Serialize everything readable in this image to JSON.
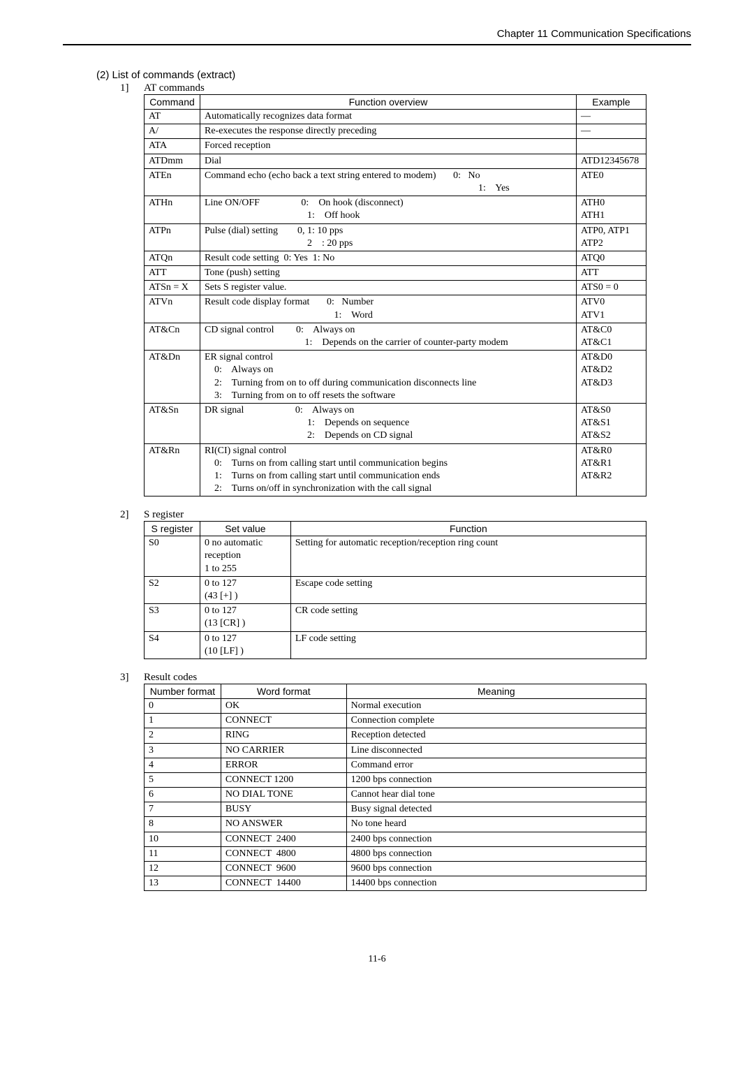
{
  "header": {
    "chapter": "Chapter 11  Communication Specifications"
  },
  "section": {
    "title": "(2)    List of commands (extract)"
  },
  "sub1": {
    "num": "1]",
    "title": "AT commands"
  },
  "t1_head": {
    "c1": "Command",
    "c2": "Function overview",
    "c3": "Example"
  },
  "t1": [
    {
      "cmd": "AT",
      "fn": "Automatically recognizes data format",
      "ex": "—"
    },
    {
      "cmd": "A/",
      "fn": "Re-executes the response directly preceding",
      "ex": "—"
    },
    {
      "cmd": "ATA",
      "fn": "Forced reception",
      "ex": ""
    },
    {
      "cmd": "ATDmm",
      "fn": "Dial",
      "ex": "ATD12345678"
    },
    {
      "cmd": "ATEn",
      "fn": "Command echo (echo back a text string entered to modem)       0:   No\n                                                                                                                1:    Yes",
      "ex": "ATE0"
    },
    {
      "cmd": "ATHn",
      "fn": "Line ON/OFF                 0:    On hook (disconnect)\n                                          1:    Off hook",
      "ex": "ATH0\nATH1"
    },
    {
      "cmd": "ATPn",
      "fn": "Pulse (dial) setting        0, 1: 10 pps\n                                          2    : 20 pps",
      "ex": "ATP0, ATP1\nATP2"
    },
    {
      "cmd": "ATQn",
      "fn": "Result code setting  0: Yes  1: No",
      "ex": "ATQ0"
    },
    {
      "cmd": "ATT",
      "fn": "Tone (push) setting",
      "ex": "ATT"
    },
    {
      "cmd": "ATSn = X",
      "fn": "Sets S register value.",
      "ex": "ATS0 = 0"
    },
    {
      "cmd": "ATVn",
      "fn": "Result code display format       0:   Number\n                                                     1:    Word",
      "ex": "ATV0\nATV1"
    },
    {
      "cmd": "AT&Cn",
      "fn": "CD signal control         0:    Always on\n                                         1:    Depends on the carrier of counter-party modem",
      "ex": "AT&C0\nAT&C1"
    },
    {
      "cmd": "AT&Dn",
      "fn": "ER signal control\n    0:    Always on\n    2:    Turning from on to off during communication disconnects line\n    3:    Turning from on to off resets the software",
      "ex": "AT&D0\nAT&D2\nAT&D3"
    },
    {
      "cmd": "AT&Sn",
      "fn": "DR signal                     0:    Always on\n                                          1:    Depends on sequence\n                                          2:    Depends on CD signal",
      "ex": "AT&S0\nAT&S1\nAT&S2"
    },
    {
      "cmd": "AT&Rn",
      "fn": "RI(CI) signal control\n    0:    Turns on from calling start until communication begins\n    1:    Turns on from calling start until communication ends\n    2:    Turns on/off in synchronization with the call signal",
      "ex": "AT&R0\nAT&R1\nAT&R2"
    }
  ],
  "sub2": {
    "num": "2]",
    "title": "S register"
  },
  "t2_head": {
    "c1": "S register",
    "c2": "Set value",
    "c3": "Function"
  },
  "t2": [
    {
      "r": "S0",
      "v": "0 no automatic reception\n1 to 255",
      "f": "Setting for automatic reception/reception ring count"
    },
    {
      "r": "S2",
      "v": "0 to 127\n(43 [+] )",
      "f": "Escape code setting"
    },
    {
      "r": "S3",
      "v": "0 to 127\n(13 [CR] )",
      "f": "CR code setting"
    },
    {
      "r": "S4",
      "v": "0 to 127\n(10 [LF] )",
      "f": "LF code setting"
    }
  ],
  "sub3": {
    "num": "3]",
    "title": "Result codes"
  },
  "t3_head": {
    "c1": "Number format",
    "c2": "Word format",
    "c3": "Meaning"
  },
  "t3": [
    {
      "n": "0",
      "w": "OK",
      "m": "Normal execution"
    },
    {
      "n": "1",
      "w": "CONNECT",
      "m": "Connection complete"
    },
    {
      "n": "2",
      "w": "RING",
      "m": "Reception detected"
    },
    {
      "n": "3",
      "w": "NO CARRIER",
      "m": "Line disconnected"
    },
    {
      "n": "4",
      "w": "ERROR",
      "m": "Command error"
    },
    {
      "n": "5",
      "w": "CONNECT 1200",
      "m": "1200 bps connection"
    },
    {
      "n": "6",
      "w": "NO DIAL TONE",
      "m": "Cannot hear dial tone"
    },
    {
      "n": "7",
      "w": "BUSY",
      "m": "Busy signal detected"
    },
    {
      "n": "8",
      "w": "NO ANSWER",
      "m": "No tone heard"
    },
    {
      "n": "10",
      "w": "CONNECT  2400",
      "m": "2400 bps connection"
    },
    {
      "n": "11",
      "w": "CONNECT  4800",
      "m": "4800 bps connection"
    },
    {
      "n": "12",
      "w": "CONNECT  9600",
      "m": "9600 bps connection"
    },
    {
      "n": "13",
      "w": "CONNECT  14400",
      "m": "14400 bps connection"
    }
  ],
  "footer": {
    "page": "11-6"
  }
}
